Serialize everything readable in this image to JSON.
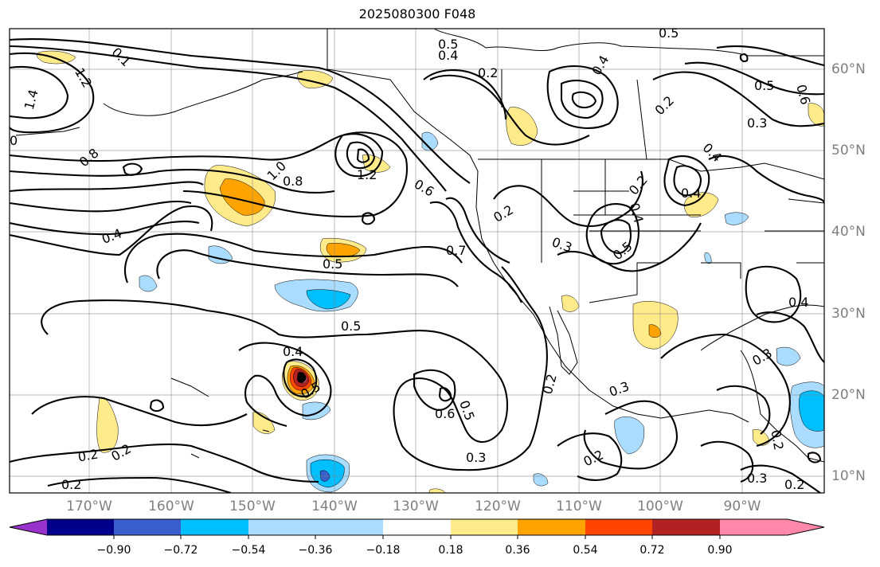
{
  "title": "2025080300 F048",
  "colors": {
    "pos_018": "#ffeb8a",
    "pos_036": "#ffa300",
    "pos_054": "#ff4500",
    "pos_072": "#b22222",
    "pos_090": "#ff88aa",
    "neg_018": "#aadcff",
    "neg_036": "#00bfff",
    "neg_054": "#3a5fcd",
    "neg_072": "#00008b",
    "neg_090": "#9932cc",
    "contour": "#000000",
    "grid": "#808080"
  },
  "map": {
    "longitude_labels": [
      "170°W",
      "160°W",
      "150°W",
      "140°W",
      "130°W",
      "120°W",
      "110°W",
      "100°W",
      "90°W"
    ],
    "latitude_labels": [
      "60°N",
      "50°N",
      "40°N",
      "30°N",
      "20°N",
      "10°N"
    ],
    "contour_labels": [
      "0.5",
      "0.4",
      "0.2",
      "0.4",
      "0.5",
      "0.2",
      "0.5",
      "0.3",
      "0.6",
      "1.2",
      "1.4",
      "0",
      "0.1",
      "0.8",
      "1.0",
      "1.2",
      "0.8",
      "0.6",
      "0.4",
      "0.5",
      "0.5",
      "0.4",
      "0.5",
      "0.7",
      "0.2",
      "0.3",
      "0.5",
      "0.4",
      "0.4",
      "0.2",
      "0.4",
      "0.6",
      "0.5",
      "0.2",
      "0.3",
      "0.3",
      "0.2",
      "0.2",
      "0.2",
      "0.2",
      "0.3",
      "0.2",
      "0.2",
      "0.3",
      "0.4"
    ]
  },
  "colorbar": {
    "tick_labels": [
      "−0.90",
      "−0.72",
      "−0.54",
      "−0.36",
      "−0.18",
      "0.18",
      "0.36",
      "0.54",
      "0.72",
      "0.90"
    ]
  }
}
